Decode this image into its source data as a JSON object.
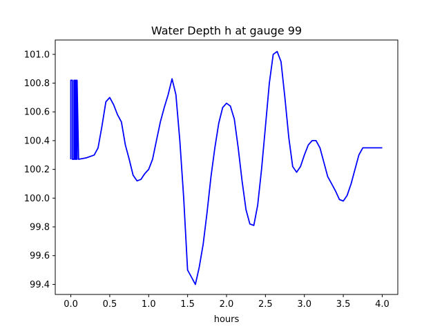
{
  "chart_data": {
    "type": "line",
    "title": "Water Depth h at gauge 99",
    "xlabel": "hours",
    "ylabel": "",
    "xlim": [
      -0.2,
      4.2
    ],
    "ylim": [
      99.33,
      101.1
    ],
    "xticks": [
      0.0,
      0.5,
      1.0,
      1.5,
      2.0,
      2.5,
      3.0,
      3.5,
      4.0
    ],
    "xtick_labels": [
      "0.0",
      "0.5",
      "1.0",
      "1.5",
      "2.0",
      "2.5",
      "3.0",
      "3.5",
      "4.0"
    ],
    "yticks": [
      99.4,
      99.6,
      99.8,
      100.0,
      100.2,
      100.4,
      100.6,
      100.8,
      101.0
    ],
    "ytick_labels": [
      "99.4",
      "99.6",
      "99.8",
      "100.0",
      "100.2",
      "100.4",
      "100.6",
      "100.8",
      "101.0"
    ],
    "grid": false,
    "colors": {
      "line": "#0000ff",
      "axes": "#000000",
      "background": "#ffffff"
    },
    "series": [
      {
        "x": [
          0.0,
          0.0,
          0.02,
          0.02,
          0.04,
          0.04,
          0.05,
          0.05,
          0.06,
          0.06,
          0.07,
          0.07,
          0.08,
          0.08,
          0.1,
          0.2,
          0.3,
          0.35,
          0.4,
          0.45,
          0.5,
          0.55,
          0.6,
          0.65,
          0.7,
          0.75,
          0.8,
          0.85,
          0.9,
          0.95,
          1.0,
          1.05,
          1.1,
          1.15,
          1.2,
          1.25,
          1.3,
          1.35,
          1.4,
          1.45,
          1.5,
          1.55,
          1.6,
          1.65,
          1.7,
          1.75,
          1.8,
          1.85,
          1.9,
          1.95,
          2.0,
          2.05,
          2.1,
          2.15,
          2.2,
          2.25,
          2.3,
          2.35,
          2.4,
          2.45,
          2.5,
          2.55,
          2.6,
          2.65,
          2.7,
          2.75,
          2.8,
          2.85,
          2.9,
          2.95,
          3.0,
          3.05,
          3.1,
          3.15,
          3.2,
          3.25,
          3.3,
          3.35,
          3.4,
          3.45,
          3.5,
          3.55,
          3.6,
          3.65,
          3.7,
          3.75,
          3.8,
          3.85,
          3.9,
          3.95,
          4.0
        ],
        "y": [
          100.27,
          100.82,
          100.82,
          100.27,
          100.27,
          100.82,
          100.82,
          100.27,
          100.27,
          100.82,
          100.82,
          100.27,
          100.27,
          100.82,
          100.27,
          100.28,
          100.3,
          100.35,
          100.5,
          100.67,
          100.7,
          100.65,
          100.58,
          100.53,
          100.37,
          100.27,
          100.16,
          100.12,
          100.13,
          100.17,
          100.2,
          100.27,
          100.4,
          100.53,
          100.63,
          100.72,
          100.83,
          100.72,
          100.4,
          100.0,
          99.5,
          99.45,
          99.4,
          99.52,
          99.68,
          99.9,
          100.15,
          100.35,
          100.52,
          100.63,
          100.66,
          100.64,
          100.55,
          100.35,
          100.12,
          99.92,
          99.82,
          99.81,
          99.95,
          100.2,
          100.5,
          100.8,
          101.0,
          101.02,
          100.95,
          100.7,
          100.42,
          100.22,
          100.18,
          100.22,
          100.3,
          100.37,
          100.4,
          100.4,
          100.35,
          100.25,
          100.15,
          100.1,
          100.05,
          99.99,
          99.98,
          100.02,
          100.1,
          100.2,
          100.3,
          100.35,
          100.35,
          100.35,
          100.35,
          100.35,
          100.35
        ]
      }
    ]
  }
}
